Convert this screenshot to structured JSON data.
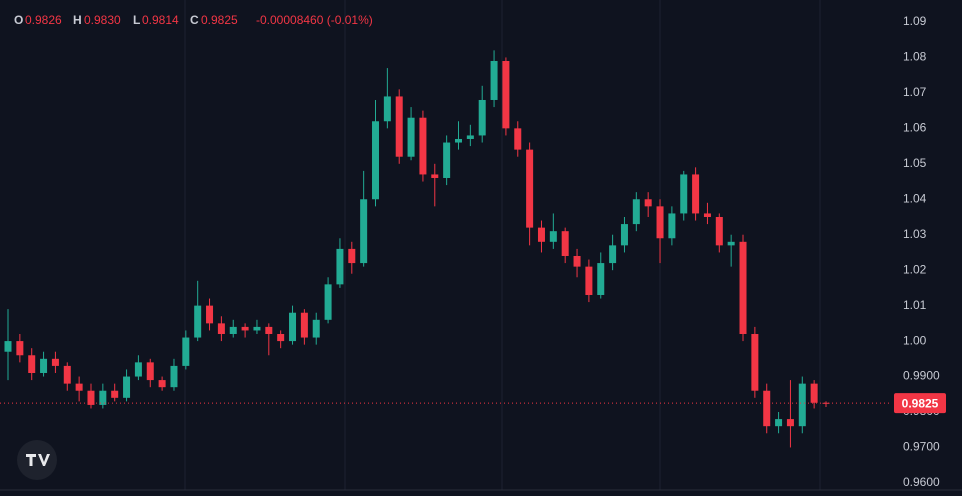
{
  "chart_data": {
    "type": "candlestick",
    "header": {
      "o_key": "O",
      "o": "0.9826",
      "h_key": "H",
      "h": "0.9830",
      "l_key": "L",
      "l": "0.9814",
      "c_key": "C",
      "c": "0.9825",
      "change": "-0.00008460 (-0.01%)"
    },
    "up_color": "#22ab94",
    "down_color": "#f23645",
    "last_price_label": "0.9825",
    "ylim": [
      0.958,
      1.0962
    ],
    "yticks": [
      1.09,
      1.08,
      1.07,
      1.06,
      1.05,
      1.04,
      1.03,
      1.02,
      1.01,
      {
        "value": 1,
        "label": "1.00"
      },
      {
        "value": 0.99,
        "label": "0.9900"
      },
      {
        "value": 0.98,
        "label": "0.9800"
      },
      {
        "value": 0.97,
        "label": "0.9700"
      },
      {
        "value": 0.96,
        "label": "0.9600"
      }
    ],
    "grid": true,
    "open": [
      0.997,
      1.0,
      0.996,
      0.991,
      0.995,
      0.993,
      0.988,
      0.986,
      0.982,
      0.986,
      0.984,
      0.99,
      0.994,
      0.989,
      0.987,
      0.993,
      1.001,
      1.01,
      1.005,
      1.002,
      1.004,
      1.003,
      1.004,
      1.002,
      1.0,
      1.008,
      1.001,
      1.006,
      1.016,
      1.026,
      1.022,
      1.04,
      1.062,
      1.069,
      1.052,
      1.063,
      1.047,
      1.046,
      1.056,
      1.057,
      1.058,
      1.068,
      1.079,
      1.06,
      1.054,
      1.032,
      1.028,
      1.031,
      1.024,
      1.021,
      1.013,
      1.022,
      1.027,
      1.033,
      1.04,
      1.038,
      1.029,
      1.036,
      1.047,
      1.036,
      1.035,
      1.027,
      1.028,
      1.002,
      0.986,
      0.976,
      0.978,
      0.976,
      0.988,
      0.9826
    ],
    "high": [
      1.009,
      1.002,
      0.998,
      0.997,
      0.997,
      0.994,
      0.99,
      0.988,
      0.988,
      0.988,
      0.992,
      0.996,
      0.995,
      0.99,
      0.995,
      1.003,
      1.017,
      1.012,
      1.007,
      1.006,
      1.005,
      1.006,
      1.005,
      1.003,
      1.01,
      1.009,
      1.008,
      1.018,
      1.029,
      1.028,
      1.048,
      1.068,
      1.077,
      1.071,
      1.066,
      1.065,
      1.05,
      1.058,
      1.062,
      1.061,
      1.072,
      1.082,
      1.08,
      1.062,
      1.056,
      1.034,
      1.036,
      1.032,
      1.026,
      1.023,
      1.025,
      1.03,
      1.035,
      1.042,
      1.042,
      1.04,
      1.038,
      1.048,
      1.049,
      1.039,
      1.036,
      1.03,
      1.03,
      1.004,
      0.988,
      0.98,
      0.989,
      0.99,
      0.989,
      0.983
    ],
    "low": [
      0.989,
      0.994,
      0.989,
      0.99,
      0.991,
      0.986,
      0.983,
      0.981,
      0.981,
      0.983,
      0.983,
      0.989,
      0.987,
      0.986,
      0.986,
      0.992,
      1.0,
      1.003,
      1.0,
      1.001,
      1.001,
      1.002,
      0.996,
      0.998,
      0.999,
      0.999,
      0.999,
      1.005,
      1.015,
      1.019,
      1.021,
      1.038,
      1.06,
      1.05,
      1.051,
      1.045,
      1.038,
      1.044,
      1.054,
      1.055,
      1.056,
      1.066,
      1.058,
      1.052,
      1.027,
      1.025,
      1.026,
      1.022,
      1.018,
      1.011,
      1.012,
      1.02,
      1.025,
      1.031,
      1.035,
      1.022,
      1.027,
      1.034,
      1.034,
      1.033,
      1.025,
      1.021,
      1.0,
      0.984,
      0.974,
      0.974,
      0.97,
      0.974,
      0.981,
      0.9814
    ],
    "close": [
      1.0,
      0.996,
      0.991,
      0.995,
      0.993,
      0.988,
      0.986,
      0.982,
      0.986,
      0.984,
      0.99,
      0.994,
      0.989,
      0.987,
      0.993,
      1.001,
      1.01,
      1.005,
      1.002,
      1.004,
      1.003,
      1.004,
      1.002,
      1.0,
      1.008,
      1.001,
      1.006,
      1.016,
      1.026,
      1.022,
      1.04,
      1.062,
      1.069,
      1.052,
      1.063,
      1.047,
      1.046,
      1.056,
      1.057,
      1.058,
      1.068,
      1.079,
      1.06,
      1.054,
      1.032,
      1.028,
      1.031,
      1.024,
      1.021,
      1.013,
      1.022,
      1.027,
      1.033,
      1.04,
      1.038,
      1.029,
      1.036,
      1.047,
      1.036,
      1.035,
      1.027,
      1.028,
      1.002,
      0.986,
      0.976,
      0.978,
      0.976,
      0.988,
      0.9826,
      0.9825
    ]
  }
}
